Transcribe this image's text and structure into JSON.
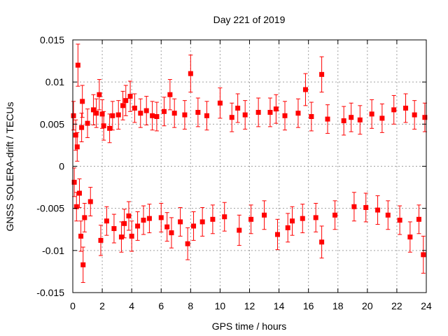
{
  "chart_data": {
    "type": "scatter",
    "title": "Day 221 of 2019",
    "xlabel": "GPS time / hours",
    "ylabel": "GNSS SOLERA-drift / TECUs",
    "xlim": [
      0,
      24
    ],
    "ylim": [
      -0.015,
      0.015
    ],
    "x_ticks": [
      0,
      2,
      4,
      6,
      8,
      10,
      12,
      14,
      16,
      18,
      20,
      22,
      24
    ],
    "y_ticks": [
      -0.015,
      -0.01,
      -0.005,
      0,
      0.005,
      0.01,
      0.015
    ],
    "x_tick_labels": [
      "0",
      "2",
      "4",
      "6",
      "8",
      "10",
      "12",
      "14",
      "16",
      "18",
      "20",
      "22",
      "24"
    ],
    "y_tick_labels": [
      "-0.015",
      "-0.01",
      "-0.005",
      "0",
      "0.005",
      "0.01",
      "0.015"
    ],
    "grid": true,
    "marker": "square",
    "error_bars": true,
    "color": "#ff0000",
    "series": [
      {
        "points": [
          {
            "x": 0.05,
            "y": 0.006,
            "e": 0.0017
          },
          {
            "x": 0.1,
            "y": -0.0019,
            "e": 0.0017
          },
          {
            "x": 0.2,
            "y": 0.0037,
            "e": 0.0018
          },
          {
            "x": 0.25,
            "y": -0.0048,
            "e": 0.0017
          },
          {
            "x": 0.3,
            "y": 0.0023,
            "e": 0.0017
          },
          {
            "x": 0.35,
            "y": 0.012,
            "e": 0.0025
          },
          {
            "x": 0.45,
            "y": -0.0032,
            "e": 0.0017
          },
          {
            "x": 0.55,
            "y": -0.0083,
            "e": 0.0018
          },
          {
            "x": 0.6,
            "y": 0.0046,
            "e": 0.0017
          },
          {
            "x": 0.65,
            "y": 0.0077,
            "e": 0.0019
          },
          {
            "x": 0.7,
            "y": -0.0117,
            "e": 0.0021
          },
          {
            "x": 0.8,
            "y": -0.0061,
            "e": 0.0017
          },
          {
            "x": 1.0,
            "y": 0.0051,
            "e": 0.0017
          },
          {
            "x": 1.2,
            "y": -0.0042,
            "e": 0.0017
          },
          {
            "x": 1.4,
            "y": 0.0067,
            "e": 0.0018
          },
          {
            "x": 1.6,
            "y": 0.0063,
            "e": 0.0017
          },
          {
            "x": 1.8,
            "y": 0.0085,
            "e": 0.0018
          },
          {
            "x": 1.9,
            "y": -0.0088,
            "e": 0.0018
          },
          {
            "x": 2.0,
            "y": 0.0062,
            "e": 0.0017
          },
          {
            "x": 2.1,
            "y": 0.0048,
            "e": 0.0017
          },
          {
            "x": 2.3,
            "y": -0.0065,
            "e": 0.0017
          },
          {
            "x": 2.5,
            "y": 0.0045,
            "e": 0.0017
          },
          {
            "x": 2.7,
            "y": 0.006,
            "e": 0.0017
          },
          {
            "x": 2.8,
            "y": -0.0074,
            "e": 0.0017
          },
          {
            "x": 3.1,
            "y": 0.0061,
            "e": 0.0017
          },
          {
            "x": 3.3,
            "y": -0.0084,
            "e": 0.0018
          },
          {
            "x": 3.4,
            "y": 0.0072,
            "e": 0.0017
          },
          {
            "x": 3.5,
            "y": -0.0068,
            "e": 0.0017
          },
          {
            "x": 3.6,
            "y": 0.0078,
            "e": 0.0018
          },
          {
            "x": 3.8,
            "y": -0.0059,
            "e": 0.0017
          },
          {
            "x": 3.9,
            "y": 0.0083,
            "e": 0.0018
          },
          {
            "x": 4.0,
            "y": -0.0083,
            "e": 0.0018
          },
          {
            "x": 4.2,
            "y": 0.0069,
            "e": 0.0017
          },
          {
            "x": 4.4,
            "y": -0.0071,
            "e": 0.0017
          },
          {
            "x": 4.6,
            "y": 0.0063,
            "e": 0.0017
          },
          {
            "x": 4.8,
            "y": -0.0064,
            "e": 0.0017
          },
          {
            "x": 5.0,
            "y": 0.0066,
            "e": 0.0017
          },
          {
            "x": 5.2,
            "y": -0.0062,
            "e": 0.0017
          },
          {
            "x": 5.4,
            "y": 0.006,
            "e": 0.0017
          },
          {
            "x": 5.7,
            "y": 0.0059,
            "e": 0.0017
          },
          {
            "x": 6.0,
            "y": -0.0061,
            "e": 0.0017
          },
          {
            "x": 6.2,
            "y": 0.0065,
            "e": 0.0017
          },
          {
            "x": 6.4,
            "y": -0.0072,
            "e": 0.0017
          },
          {
            "x": 6.6,
            "y": 0.0085,
            "e": 0.0018
          },
          {
            "x": 6.7,
            "y": -0.0079,
            "e": 0.0018
          },
          {
            "x": 6.9,
            "y": 0.0063,
            "e": 0.0017
          },
          {
            "x": 7.3,
            "y": -0.0066,
            "e": 0.0017
          },
          {
            "x": 7.6,
            "y": 0.0061,
            "e": 0.0017
          },
          {
            "x": 7.8,
            "y": -0.0092,
            "e": 0.0019
          },
          {
            "x": 8.0,
            "y": 0.011,
            "e": 0.0022
          },
          {
            "x": 8.2,
            "y": -0.0071,
            "e": 0.0017
          },
          {
            "x": 8.5,
            "y": 0.0064,
            "e": 0.0017
          },
          {
            "x": 8.8,
            "y": -0.0066,
            "e": 0.0017
          },
          {
            "x": 9.1,
            "y": 0.006,
            "e": 0.0017
          },
          {
            "x": 9.5,
            "y": -0.0063,
            "e": 0.0017
          },
          {
            "x": 10.0,
            "y": 0.0075,
            "e": 0.0018
          },
          {
            "x": 10.3,
            "y": -0.006,
            "e": 0.0017
          },
          {
            "x": 10.8,
            "y": 0.0058,
            "e": 0.0017
          },
          {
            "x": 11.2,
            "y": 0.0069,
            "e": 0.0017
          },
          {
            "x": 11.3,
            "y": -0.0076,
            "e": 0.0018
          },
          {
            "x": 11.7,
            "y": 0.0061,
            "e": 0.0017
          },
          {
            "x": 12.1,
            "y": -0.0063,
            "e": 0.0017
          },
          {
            "x": 12.6,
            "y": 0.0064,
            "e": 0.0017
          },
          {
            "x": 13.0,
            "y": -0.0058,
            "e": 0.0017
          },
          {
            "x": 13.4,
            "y": 0.0064,
            "e": 0.0017
          },
          {
            "x": 13.8,
            "y": 0.0068,
            "e": 0.0017
          },
          {
            "x": 13.9,
            "y": -0.0081,
            "e": 0.0018
          },
          {
            "x": 14.4,
            "y": 0.006,
            "e": 0.0017
          },
          {
            "x": 14.6,
            "y": -0.0073,
            "e": 0.0017
          },
          {
            "x": 14.9,
            "y": -0.0065,
            "e": 0.0017
          },
          {
            "x": 15.3,
            "y": 0.0063,
            "e": 0.0017
          },
          {
            "x": 15.6,
            "y": -0.0062,
            "e": 0.0017
          },
          {
            "x": 15.8,
            "y": 0.0091,
            "e": 0.0019
          },
          {
            "x": 16.2,
            "y": 0.0059,
            "e": 0.0017
          },
          {
            "x": 16.5,
            "y": -0.0061,
            "e": 0.0017
          },
          {
            "x": 16.9,
            "y": 0.0109,
            "e": 0.0021
          },
          {
            "x": 16.9,
            "y": -0.009,
            "e": 0.0019
          },
          {
            "x": 17.3,
            "y": 0.0056,
            "e": 0.0017
          },
          {
            "x": 17.8,
            "y": -0.0058,
            "e": 0.0017
          },
          {
            "x": 18.4,
            "y": 0.0054,
            "e": 0.0017
          },
          {
            "x": 18.9,
            "y": 0.0058,
            "e": 0.0017
          },
          {
            "x": 19.1,
            "y": -0.0048,
            "e": 0.0017
          },
          {
            "x": 19.5,
            "y": 0.0055,
            "e": 0.0017
          },
          {
            "x": 19.9,
            "y": -0.0049,
            "e": 0.0017
          },
          {
            "x": 20.3,
            "y": 0.0062,
            "e": 0.0017
          },
          {
            "x": 20.7,
            "y": -0.0052,
            "e": 0.0017
          },
          {
            "x": 21.0,
            "y": 0.0057,
            "e": 0.0017
          },
          {
            "x": 21.4,
            "y": -0.0058,
            "e": 0.0017
          },
          {
            "x": 21.8,
            "y": 0.0067,
            "e": 0.0017
          },
          {
            "x": 22.2,
            "y": -0.0064,
            "e": 0.0017
          },
          {
            "x": 22.6,
            "y": 0.0069,
            "e": 0.0017
          },
          {
            "x": 22.9,
            "y": -0.0084,
            "e": 0.0018
          },
          {
            "x": 23.2,
            "y": 0.0061,
            "e": 0.0017
          },
          {
            "x": 23.5,
            "y": -0.0063,
            "e": 0.0017
          },
          {
            "x": 23.8,
            "y": -0.0105,
            "e": 0.0022
          },
          {
            "x": 23.9,
            "y": 0.0058,
            "e": 0.0017
          }
        ]
      }
    ]
  }
}
